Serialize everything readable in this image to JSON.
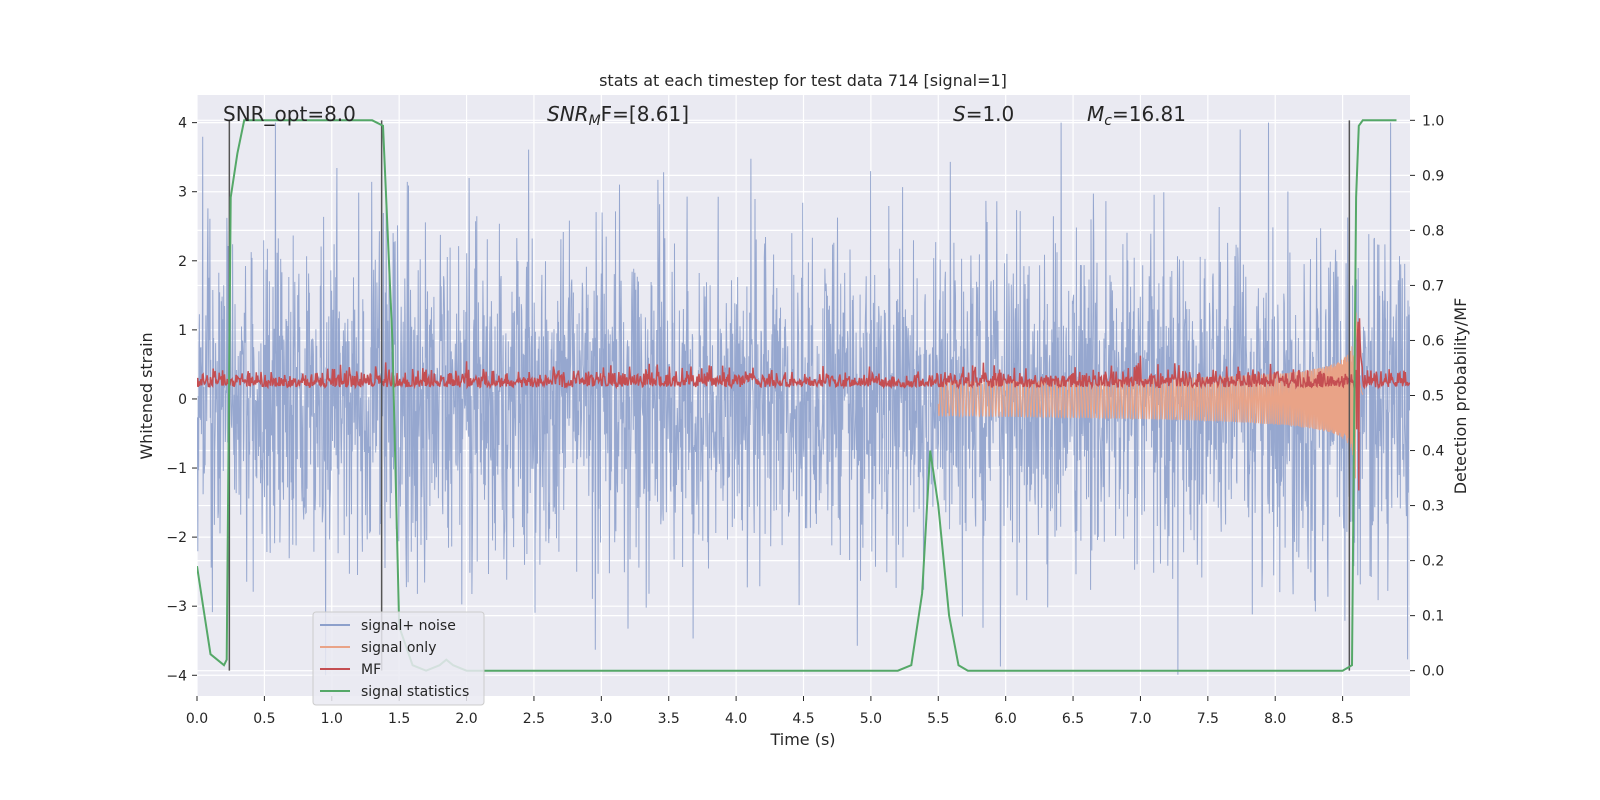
{
  "chart_data": {
    "type": "line",
    "title": "stats at each timestep for test data 714 [signal=1]",
    "xlabel": "Time (s)",
    "ylabel": "Whitened strain",
    "y2label": "Detection probability/MF",
    "xlim": [
      0,
      9.0
    ],
    "ylim": [
      -4.3,
      4.4
    ],
    "y2lim": [
      -0.046,
      1.046
    ],
    "x_ticks": [
      "0.0",
      "0.5",
      "1.0",
      "1.5",
      "2.0",
      "2.5",
      "3.0",
      "3.5",
      "4.0",
      "4.5",
      "5.0",
      "5.5",
      "6.0",
      "6.5",
      "7.0",
      "7.5",
      "8.0",
      "8.5"
    ],
    "y_ticks": [
      "4",
      "3",
      "2",
      "1",
      "0",
      "−1",
      "−2",
      "−3",
      "−4"
    ],
    "y2_ticks": [
      "1.0",
      "0.9",
      "0.8",
      "0.7",
      "0.6",
      "0.5",
      "0.4",
      "0.3",
      "0.2",
      "0.1",
      "0.0"
    ],
    "grid": true,
    "legend_position": "lower-left",
    "annotations": {
      "snr_opt": "SNR_opt=8.0",
      "snr_mf_base": "SNR",
      "snr_mf_sub": "M",
      "snr_mf_rest": "F=[8.61]",
      "s_sym": "S",
      "s_val": "=1.0",
      "mc_base": "M",
      "mc_sub": "c",
      "mc_val": "=16.81"
    },
    "series": [
      {
        "name": "signal+ noise",
        "color": "#8da0cb",
        "description_values": "whitened noise, roughly Gaussian, amplitude up to about ±4 (axis y)",
        "envelope_y": [
          -4.0,
          4.0
        ]
      },
      {
        "name": "signal only",
        "color": "#e9a387",
        "chirp_start_x": 5.5,
        "merger_x": 8.6,
        "peak_amplitude_y": 1.3
      },
      {
        "name": "MF",
        "color": "#c44e52",
        "baseline_y2": 0.53,
        "peak_x": 8.62,
        "peak_y2": 0.6
      },
      {
        "name": "signal statistics",
        "color": "#55a868",
        "x": [
          0.0,
          0.05,
          0.1,
          0.2,
          0.22,
          0.25,
          0.3,
          0.35,
          0.5,
          1.0,
          1.3,
          1.38,
          1.45,
          1.5,
          1.6,
          1.7,
          1.8,
          1.85,
          1.9,
          2.0,
          3.0,
          4.0,
          4.7,
          5.2,
          5.3,
          5.38,
          5.44,
          5.5,
          5.58,
          5.65,
          5.72,
          6.0,
          7.0,
          8.0,
          8.5,
          8.57,
          8.6,
          8.62,
          8.65,
          8.7,
          8.9
        ],
        "y": [
          0.19,
          0.11,
          0.03,
          0.01,
          0.02,
          0.86,
          0.94,
          1.0,
          1.0,
          1.0,
          1.0,
          0.99,
          0.6,
          0.08,
          0.01,
          0.0,
          0.01,
          0.02,
          0.01,
          0.0,
          0.0,
          0.0,
          0.0,
          0.0,
          0.01,
          0.14,
          0.4,
          0.3,
          0.1,
          0.01,
          0.0,
          0.0,
          0.0,
          0.0,
          0.0,
          0.01,
          0.86,
          0.99,
          1.0,
          1.0,
          1.0
        ]
      }
    ],
    "vlines_x": [
      0.24,
      1.37,
      8.55
    ]
  }
}
